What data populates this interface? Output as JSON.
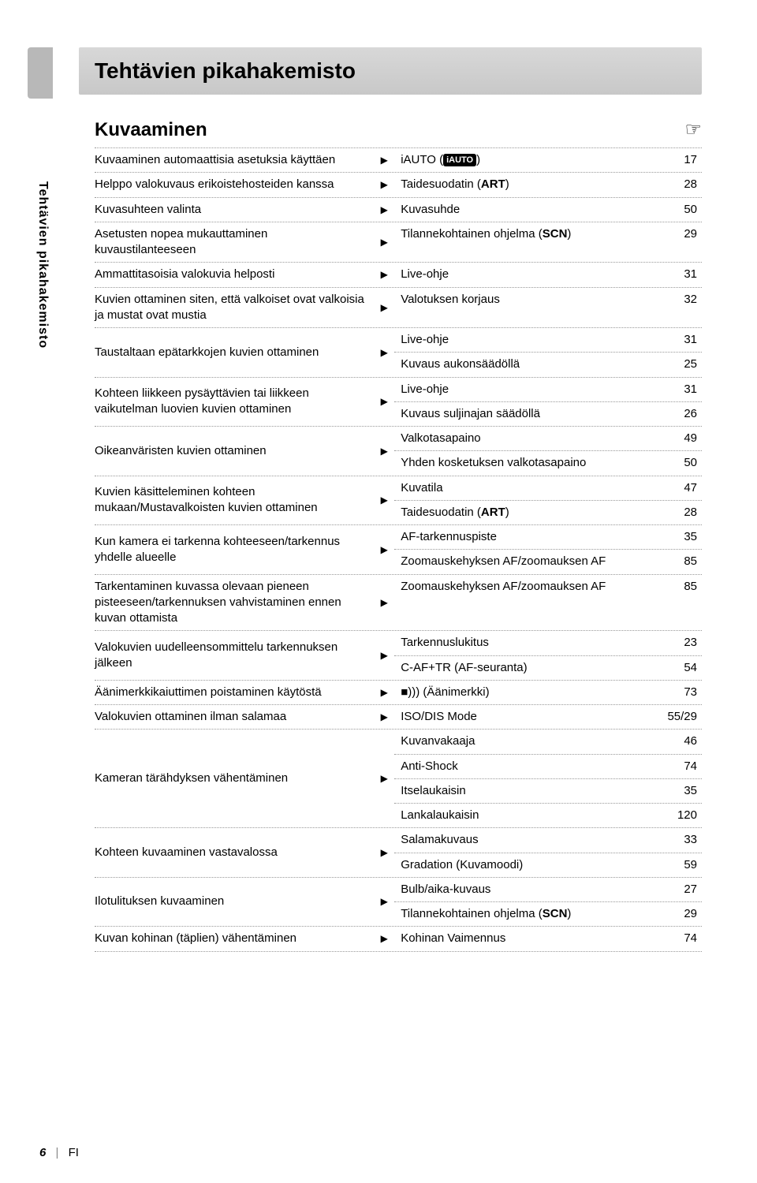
{
  "title": "Tehtävien pikahakemisto",
  "sidebar_label": "Tehtävien pikahakemisto",
  "section_heading": "Kuvaaminen",
  "hand_icon": "☞",
  "arrow": "▶",
  "rows": [
    {
      "left": "Kuvaaminen automaattisia asetuksia käyttäen",
      "rights": [
        {
          "label_pre": "iAUTO (",
          "pill": "iAUTO",
          "label_post": ")",
          "page": "17"
        }
      ]
    },
    {
      "left": "Helppo valokuvaus erikoistehosteiden kanssa",
      "rights": [
        {
          "label_pre": "Taidesuodatin (",
          "bold": "ART",
          "label_post": ")",
          "page": "28"
        }
      ]
    },
    {
      "left": "Kuvasuhteen valinta",
      "rights": [
        {
          "label": "Kuvasuhde",
          "page": "50"
        }
      ]
    },
    {
      "left": "Asetusten nopea mukauttaminen kuvaustilanteeseen",
      "rights": [
        {
          "label_pre": "Tilannekohtainen ohjelma (",
          "bold": "SCN",
          "label_post": ")",
          "page": "29"
        }
      ]
    },
    {
      "left": "Ammattitasoisia valokuvia helposti",
      "rights": [
        {
          "label": "Live-ohje",
          "page": "31"
        }
      ]
    },
    {
      "left": "Kuvien ottaminen siten, että valkoiset ovat valkoisia ja mustat ovat mustia",
      "rights": [
        {
          "label": "Valotuksen korjaus",
          "page": "32"
        }
      ]
    },
    {
      "left": "Taustaltaan epätarkkojen kuvien ottaminen",
      "rights": [
        {
          "label": "Live-ohje",
          "page": "31"
        },
        {
          "label": "Kuvaus aukonsäädöllä",
          "page": "25"
        }
      ]
    },
    {
      "left": "Kohteen liikkeen pysäyttävien tai liikkeen vaikutelman luovien kuvien ottaminen",
      "rights": [
        {
          "label": "Live-ohje",
          "page": "31"
        },
        {
          "label": "Kuvaus suljinajan säädöllä",
          "page": "26"
        }
      ]
    },
    {
      "left": "Oikeanväristen kuvien ottaminen",
      "rights": [
        {
          "label": "Valkotasapaino",
          "page": "49"
        },
        {
          "label": "Yhden kosketuksen valkotasapaino",
          "page": "50"
        }
      ]
    },
    {
      "left": "Kuvien käsitteleminen kohteen mukaan/Mustavalkoisten kuvien ottaminen",
      "rights": [
        {
          "label": "Kuvatila",
          "page": "47"
        },
        {
          "label_pre": "Taidesuodatin (",
          "bold": "ART",
          "label_post": ")",
          "page": "28"
        }
      ]
    },
    {
      "left": "Kun kamera ei tarkenna kohteeseen/tarkennus yhdelle alueelle",
      "rights": [
        {
          "label": "AF-tarkennuspiste",
          "page": "35"
        },
        {
          "label": "Zoomauskehyksen AF/zoomauksen AF",
          "page": "85"
        }
      ]
    },
    {
      "left": "Tarkentaminen kuvassa olevaan pieneen pisteeseen/tarkennuksen vahvistaminen ennen kuvan ottamista",
      "rights": [
        {
          "label": "Zoomauskehyksen AF/zoomauksen AF",
          "page": "85"
        }
      ]
    },
    {
      "left": "Valokuvien uudelleensommittelu tarkennuksen jälkeen",
      "rights": [
        {
          "label": "Tarkennuslukitus",
          "page": "23"
        },
        {
          "label": "C-AF+TR (AF-seuranta)",
          "page": "54"
        }
      ]
    },
    {
      "left": "Äänimerkkikaiuttimen poistaminen käytöstä",
      "rights": [
        {
          "label": "■))) (Äänimerkki)",
          "page": "73"
        }
      ]
    },
    {
      "left": "Valokuvien ottaminen ilman salamaa",
      "rights": [
        {
          "label": "ISO/DIS Mode",
          "page": "55/29"
        }
      ]
    },
    {
      "left": "Kameran tärähdyksen vähentäminen",
      "rights": [
        {
          "label": "Kuvanvakaaja",
          "page": "46"
        },
        {
          "label": "Anti-Shock",
          "page": "74"
        },
        {
          "label": "Itselaukaisin",
          "page": "35"
        },
        {
          "label": "Lankalaukaisin",
          "page": "120"
        }
      ]
    },
    {
      "left": "Kohteen kuvaaminen vastavalossa",
      "rights": [
        {
          "label": "Salamakuvaus",
          "page": "33"
        },
        {
          "label": "Gradation (Kuvamoodi)",
          "page": "59"
        }
      ]
    },
    {
      "left": "Ilotulituksen kuvaaminen",
      "rights": [
        {
          "label": "Bulb/aika-kuvaus",
          "page": "27"
        },
        {
          "label_pre": "Tilannekohtainen ohjelma (",
          "bold": "SCN",
          "label_post": ")",
          "page": "29"
        }
      ]
    },
    {
      "left": "Kuvan kohinan (täplien) vähentäminen",
      "rights": [
        {
          "label": "Kohinan Vaimennus",
          "page": "74"
        }
      ]
    }
  ],
  "footer": {
    "page_number": "6",
    "lang": "FI"
  }
}
